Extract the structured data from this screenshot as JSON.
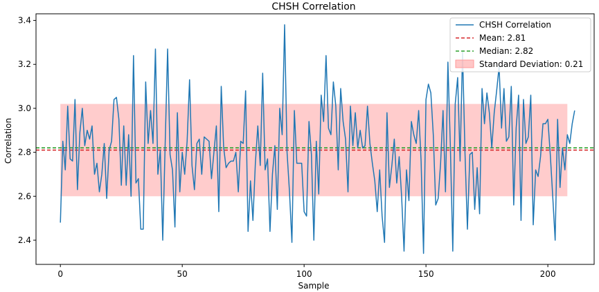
{
  "chart_data": {
    "type": "line",
    "title": "CHSH Correlation",
    "xlabel": "Sample",
    "ylabel": "Correlation",
    "xlim": [
      -10,
      219
    ],
    "ylim": [
      2.29,
      3.43
    ],
    "xticks": [
      0,
      50,
      100,
      150,
      200
    ],
    "yticks": [
      2.4,
      2.6,
      2.8,
      3.0,
      3.2,
      3.4
    ],
    "xtick_labels": [
      "0",
      "50",
      "100",
      "150",
      "200"
    ],
    "ytick_labels": [
      "2.4",
      "2.6",
      "2.8",
      "3.0",
      "3.2",
      "3.4"
    ],
    "grid": false,
    "legend_position": "top-right",
    "series": [
      {
        "name": "CHSH Correlation",
        "color": "#1f77b4",
        "x_start": 0,
        "x_step": 1,
        "values": [
          2.48,
          2.85,
          2.72,
          3.01,
          2.77,
          2.76,
          3.04,
          2.63,
          2.89,
          3.0,
          2.83,
          2.9,
          2.86,
          2.92,
          2.7,
          2.75,
          2.62,
          2.7,
          2.84,
          2.59,
          2.81,
          2.85,
          3.04,
          3.05,
          2.95,
          2.65,
          2.92,
          2.65,
          2.88,
          2.6,
          3.24,
          2.66,
          2.68,
          2.45,
          2.45,
          3.12,
          2.84,
          2.99,
          2.84,
          3.27,
          2.7,
          2.81,
          2.4,
          2.84,
          3.27,
          2.79,
          2.72,
          2.46,
          2.98,
          2.62,
          2.8,
          2.7,
          2.85,
          3.13,
          2.74,
          2.63,
          2.84,
          2.86,
          2.7,
          2.87,
          2.86,
          2.85,
          2.68,
          2.8,
          2.92,
          2.53,
          3.1,
          2.82,
          2.73,
          2.75,
          2.76,
          2.76,
          2.8,
          2.62,
          2.85,
          2.84,
          3.08,
          2.44,
          2.67,
          2.49,
          2.75,
          2.92,
          2.74,
          3.16,
          2.72,
          2.77,
          2.44,
          2.7,
          2.83,
          2.54,
          3.0,
          2.88,
          3.38,
          2.8,
          2.62,
          2.39,
          2.99,
          2.75,
          2.75,
          2.75,
          2.53,
          2.51,
          2.94,
          2.79,
          2.4,
          2.85,
          2.61,
          3.06,
          2.94,
          3.24,
          2.91,
          2.88,
          3.12,
          3.01,
          2.72,
          3.09,
          2.94,
          2.86,
          2.62,
          3.01,
          2.83,
          2.98,
          2.82,
          2.9,
          2.82,
          2.83,
          3.01,
          2.84,
          2.75,
          2.67,
          2.53,
          2.72,
          2.51,
          2.39,
          2.98,
          2.64,
          2.74,
          2.86,
          2.66,
          2.78,
          2.6,
          2.35,
          2.72,
          2.58,
          2.94,
          2.88,
          2.84,
          2.99,
          2.76,
          2.34,
          3.04,
          3.11,
          3.07,
          2.88,
          2.56,
          2.59,
          2.75,
          2.99,
          2.62,
          3.21,
          2.83,
          2.35,
          3.02,
          3.14,
          2.76,
          3.26,
          2.8,
          2.45,
          2.79,
          2.8,
          2.54,
          2.73,
          2.52,
          3.09,
          2.93,
          3.07,
          2.98,
          2.82,
          2.98,
          3.08,
          3.19,
          2.91,
          3.09,
          2.85,
          2.87,
          3.1,
          2.56,
          2.91,
          3.06,
          2.49,
          3.04,
          2.84,
          2.87,
          3.06,
          2.47,
          2.72,
          2.69,
          2.78,
          2.93,
          2.93,
          2.95,
          2.79,
          2.6,
          2.4,
          2.95,
          2.64,
          2.82,
          2.72,
          2.88,
          2.84,
          2.93,
          2.99
        ]
      }
    ],
    "reference_lines": [
      {
        "name": "Mean: 2.81",
        "value": 2.81,
        "color": "#d62728",
        "style": "dashed"
      },
      {
        "name": "Median: 2.82",
        "value": 2.82,
        "color": "#2ca02c",
        "style": "dashed"
      }
    ],
    "band": {
      "name": "Standard Deviation: 0.21",
      "center": 2.81,
      "half_width": 0.21,
      "x_range": [
        0,
        208
      ],
      "color": "#ff9999"
    }
  }
}
